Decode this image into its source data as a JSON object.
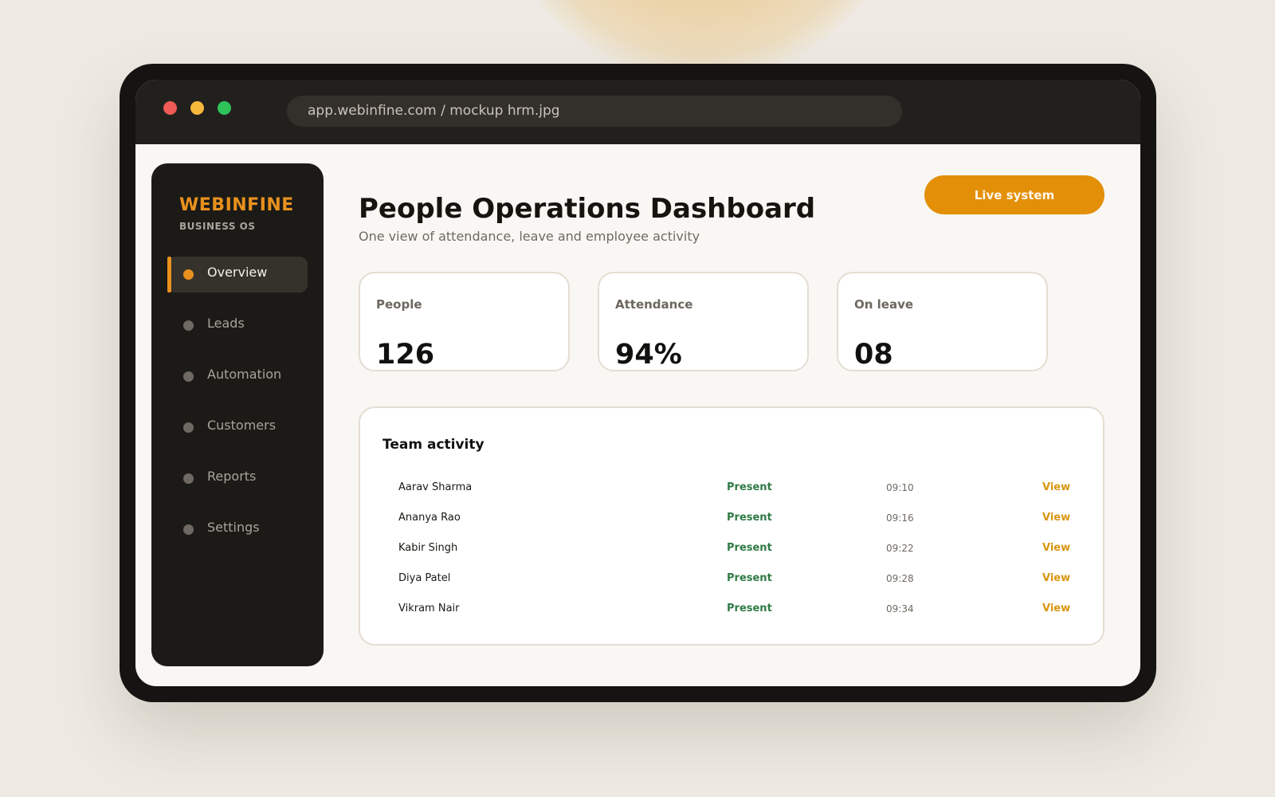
{
  "browser": {
    "url": "app.webinfine.com / mockup hrm.jpg"
  },
  "sidebar": {
    "brand": "WEBINFINE",
    "brand_sub": "BUSINESS OS",
    "items": [
      {
        "label": "Overview",
        "active": true
      },
      {
        "label": "Leads",
        "active": false
      },
      {
        "label": "Automation",
        "active": false
      },
      {
        "label": "Customers",
        "active": false
      },
      {
        "label": "Reports",
        "active": false
      },
      {
        "label": "Settings",
        "active": false
      }
    ]
  },
  "header": {
    "title": "People Operations Dashboard",
    "subtitle": "One view of attendance, leave and employee activity",
    "live_button": "Live system"
  },
  "stats": [
    {
      "label": "People",
      "value": "126"
    },
    {
      "label": "Attendance",
      "value": "94%"
    },
    {
      "label": "On leave",
      "value": "08"
    }
  ],
  "activity": {
    "title": "Team activity",
    "rows": [
      {
        "name": "Aarav Sharma",
        "status": "Present",
        "time": "09:10",
        "action": "View"
      },
      {
        "name": "Ananya Rao",
        "status": "Present",
        "time": "09:16",
        "action": "View"
      },
      {
        "name": "Kabir Singh",
        "status": "Present",
        "time": "09:22",
        "action": "View"
      },
      {
        "name": "Diya Patel",
        "status": "Present",
        "time": "09:28",
        "action": "View"
      },
      {
        "name": "Vikram Nair",
        "status": "Present",
        "time": "09:34",
        "action": "View"
      }
    ]
  },
  "colors": {
    "accent": "#e38f08",
    "status_present": "#2f7a45",
    "link": "#d9960f",
    "sidebar_bg": "#1c1a17"
  }
}
